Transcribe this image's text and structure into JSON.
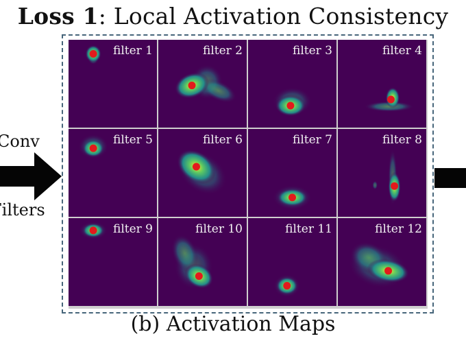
{
  "title": {
    "bold": "Loss 1",
    "rest": ": Local  Activation Consistency"
  },
  "left_labels": {
    "top": "Conv",
    "bottom": "Filters"
  },
  "caption": "(b) Activation Maps",
  "colors": {
    "viridis_dark": "#440154",
    "viridis_teal": "#21918c",
    "viridis_green": "#5ec962",
    "viridis_yellow": "#fde725",
    "peak_dot": "#e31a1c",
    "frame": "#46657a"
  },
  "maps": [
    {
      "label": "filter 1",
      "row": 0,
      "col": 0,
      "peak": [
        0.28,
        0.16
      ],
      "blob": [
        [
          0.28,
          0.16,
          0.09,
          0.1,
          1.0,
          0
        ],
        [
          0.28,
          0.22,
          0.06,
          0.06,
          0.4,
          0
        ]
      ]
    },
    {
      "label": "filter 2",
      "row": 0,
      "col": 1,
      "peak": [
        0.38,
        0.52
      ],
      "blob": [
        [
          0.38,
          0.52,
          0.2,
          0.14,
          1.0,
          -20
        ],
        [
          0.68,
          0.58,
          0.22,
          0.11,
          0.55,
          25
        ],
        [
          0.55,
          0.48,
          0.18,
          0.2,
          0.45,
          0
        ]
      ]
    },
    {
      "label": "filter 3",
      "row": 0,
      "col": 2,
      "peak": [
        0.48,
        0.75
      ],
      "blob": [
        [
          0.48,
          0.75,
          0.17,
          0.12,
          1.0,
          0
        ],
        [
          0.5,
          0.7,
          0.22,
          0.16,
          0.35,
          0
        ]
      ]
    },
    {
      "label": "filter 4",
      "row": 0,
      "col": 3,
      "peak": [
        0.6,
        0.68
      ],
      "blob": [
        [
          0.62,
          0.66,
          0.08,
          0.12,
          1.0,
          0
        ],
        [
          0.58,
          0.76,
          0.28,
          0.06,
          0.6,
          0
        ]
      ]
    },
    {
      "label": "filter 5",
      "row": 1,
      "col": 0,
      "peak": [
        0.28,
        0.22
      ],
      "blob": [
        [
          0.28,
          0.22,
          0.12,
          0.1,
          1.0,
          0
        ],
        [
          0.28,
          0.2,
          0.17,
          0.14,
          0.35,
          0
        ]
      ]
    },
    {
      "label": "filter 6",
      "row": 1,
      "col": 1,
      "peak": [
        0.43,
        0.43
      ],
      "blob": [
        [
          0.43,
          0.43,
          0.24,
          0.17,
          1.0,
          35
        ],
        [
          0.5,
          0.5,
          0.3,
          0.22,
          0.35,
          35
        ]
      ]
    },
    {
      "label": "filter 7",
      "row": 1,
      "col": 2,
      "peak": [
        0.5,
        0.78
      ],
      "blob": [
        [
          0.5,
          0.78,
          0.17,
          0.1,
          1.0,
          0
        ],
        [
          0.5,
          0.78,
          0.22,
          0.14,
          0.35,
          0
        ]
      ]
    },
    {
      "label": "filter 8",
      "row": 1,
      "col": 3,
      "peak": [
        0.64,
        0.65
      ],
      "blob": [
        [
          0.64,
          0.66,
          0.07,
          0.17,
          1.0,
          0
        ],
        [
          0.62,
          0.55,
          0.05,
          0.32,
          0.45,
          0
        ],
        [
          0.42,
          0.64,
          0.03,
          0.05,
          0.45,
          0
        ]
      ]
    },
    {
      "label": "filter 9",
      "row": 2,
      "col": 0,
      "peak": [
        0.28,
        0.14
      ],
      "blob": [
        [
          0.28,
          0.14,
          0.12,
          0.08,
          1.0,
          0
        ],
        [
          0.28,
          0.14,
          0.16,
          0.1,
          0.35,
          0
        ]
      ]
    },
    {
      "label": "filter 10",
      "row": 2,
      "col": 1,
      "peak": [
        0.46,
        0.66
      ],
      "blob": [
        [
          0.46,
          0.66,
          0.17,
          0.13,
          1.0,
          30
        ],
        [
          0.3,
          0.4,
          0.14,
          0.22,
          0.55,
          -20
        ],
        [
          0.4,
          0.55,
          0.22,
          0.26,
          0.3,
          0
        ]
      ]
    },
    {
      "label": "filter 11",
      "row": 2,
      "col": 2,
      "peak": [
        0.44,
        0.77
      ],
      "blob": [
        [
          0.44,
          0.77,
          0.12,
          0.1,
          1.0,
          0
        ],
        [
          0.44,
          0.77,
          0.15,
          0.13,
          0.35,
          0
        ]
      ]
    },
    {
      "label": "filter 12",
      "row": 2,
      "col": 3,
      "peak": [
        0.57,
        0.6
      ],
      "blob": [
        [
          0.57,
          0.6,
          0.24,
          0.13,
          1.0,
          10
        ],
        [
          0.35,
          0.45,
          0.22,
          0.17,
          0.55,
          25
        ],
        [
          0.45,
          0.55,
          0.34,
          0.24,
          0.3,
          15
        ]
      ]
    }
  ]
}
